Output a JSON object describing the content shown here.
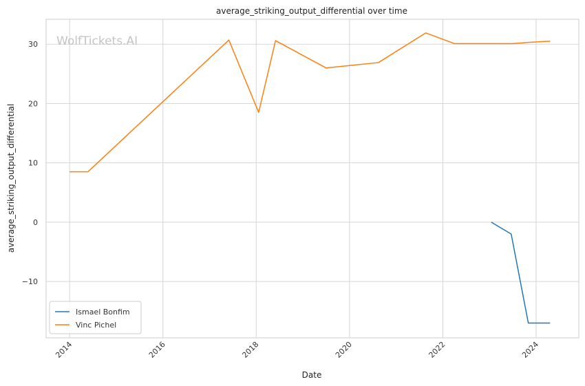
{
  "watermark": "WolfTickets.AI",
  "chart_data": {
    "type": "line",
    "title": "average_striking_output_differential over time",
    "xlabel": "Date",
    "ylabel": "average_striking_output_differential",
    "xlim": [
      "2013-07-01",
      "2024-12-01"
    ],
    "ylim": [
      -19.5,
      34.2
    ],
    "x_ticks": [
      "2014",
      "2016",
      "2018",
      "2020",
      "2022",
      "2024"
    ],
    "y_ticks": [
      -10,
      0,
      10,
      20,
      30
    ],
    "y_tick_labels": [
      "−10",
      "0",
      "10",
      "20",
      "30"
    ],
    "grid": true,
    "legend_position": "lower-left",
    "series": [
      {
        "name": "Ismael Bonfim",
        "color": "#1f77b4",
        "points": [
          {
            "x": "2023-01-15",
            "y": 0.0
          },
          {
            "x": "2023-06-20",
            "y": -2.0
          },
          {
            "x": "2023-11-01",
            "y": -17.0
          },
          {
            "x": "2024-04-20",
            "y": -17.0
          }
        ]
      },
      {
        "name": "Vinc Pichel",
        "color": "#ff7f0e",
        "points": [
          {
            "x": "2014-01-01",
            "y": 8.5
          },
          {
            "x": "2014-05-25",
            "y": 8.5
          },
          {
            "x": "2017-06-01",
            "y": 30.7
          },
          {
            "x": "2018-01-20",
            "y": 18.5
          },
          {
            "x": "2018-06-01",
            "y": 30.6
          },
          {
            "x": "2019-07-01",
            "y": 26.0
          },
          {
            "x": "2020-08-15",
            "y": 26.9
          },
          {
            "x": "2021-08-20",
            "y": 31.9
          },
          {
            "x": "2022-04-01",
            "y": 30.1
          },
          {
            "x": "2023-07-01",
            "y": 30.1
          },
          {
            "x": "2023-12-01",
            "y": 30.35
          },
          {
            "x": "2024-04-20",
            "y": 30.5
          }
        ]
      }
    ]
  }
}
